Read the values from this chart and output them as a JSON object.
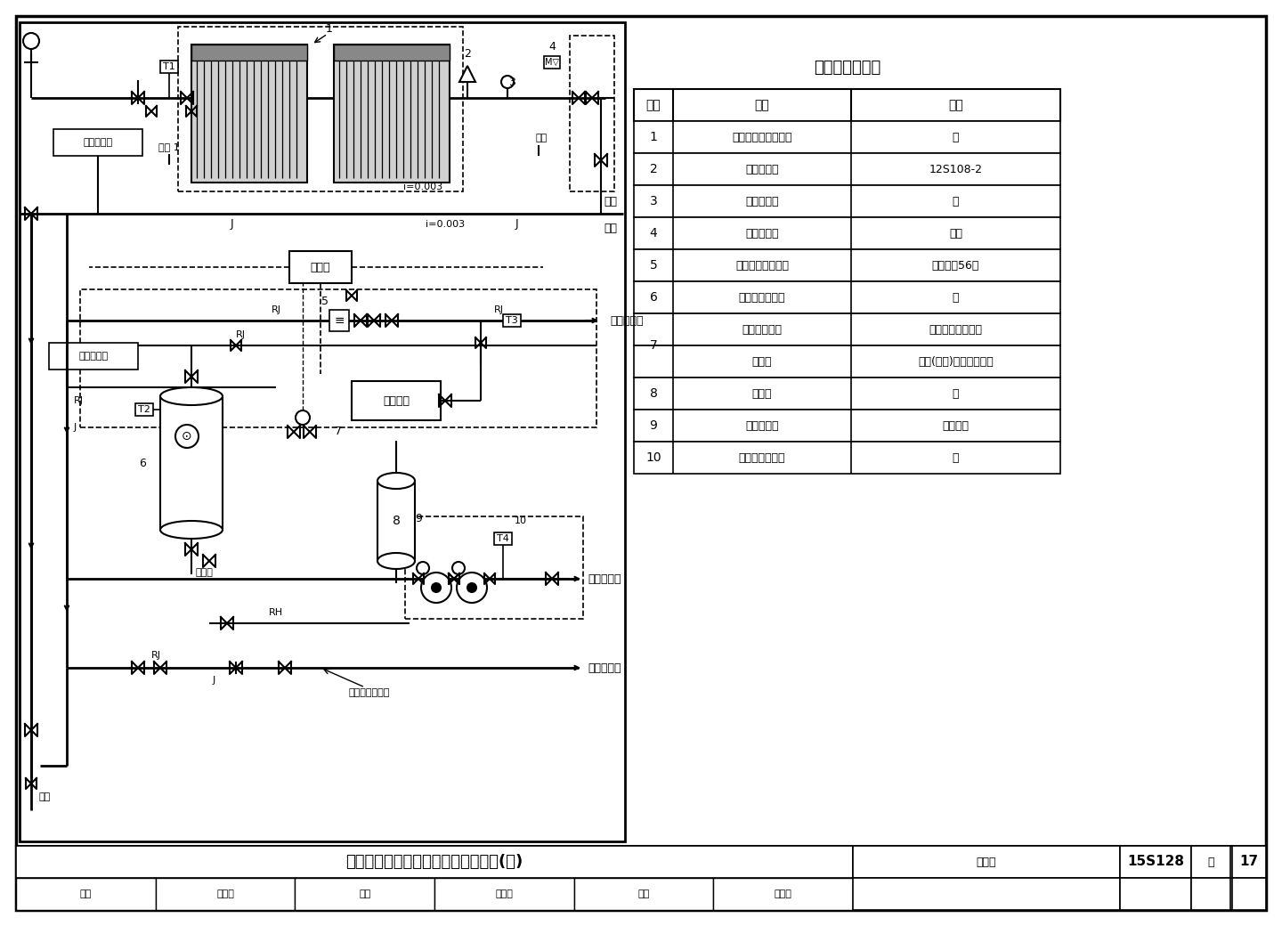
{
  "title": "无动力集热循环间接加热系统示意图(一)",
  "fig_num": "15S128",
  "page": "17",
  "bg_color": "#ffffff",
  "table_title": "主要设备材料表",
  "table_headers": [
    "序号",
    "名称",
    "备注"
  ],
  "table_rows": [
    [
      "1",
      "内筒式太阳能集热器",
      "－"
    ],
    [
      "2",
      "真空破坏器",
      "12S108-2"
    ],
    [
      "3",
      "液位传感器",
      "－"
    ],
    [
      "4",
      "进水电磁阀",
      "常闭"
    ],
    [
      "5",
      "太阳能恒温混水阀",
      "本图集第56页"
    ],
    [
      "6",
      "容积式水加热器",
      "－"
    ],
    [
      "7",
      "自力式温控阀",
      "全日自动控制系统"
    ],
    [
      "",
      "电动阀",
      "全日(定时)自动控制系统"
    ],
    [
      "8",
      "膨胀罐",
      "－"
    ],
    [
      "9",
      "回水循环泵",
      "一用一备"
    ],
    [
      "10",
      "回水温度传感器",
      "－"
    ]
  ],
  "footer_left_labels": [
    "审核",
    "王耀堂",
    "校对",
    "张燕平",
    "设计",
    "常文哲"
  ],
  "labels": {
    "roof": "屋顶",
    "indoor": "室内",
    "controller": "控制器",
    "aux_heat": "辅助热源",
    "hot_supply": "热水供水管",
    "hot_return": "热水回水管",
    "cold_supply": "冷水供水管",
    "drain1": "排至安全处",
    "drain2": "排至安全处",
    "drain_pipe": "排污管",
    "seepage1": "泄水 1",
    "seepage2": "泄水",
    "seepage3": "泄水",
    "maintenance": "检修阀（常闭）",
    "slope": "i=0.003",
    "rj": "RJ",
    "j": "J",
    "rh": "RH"
  }
}
